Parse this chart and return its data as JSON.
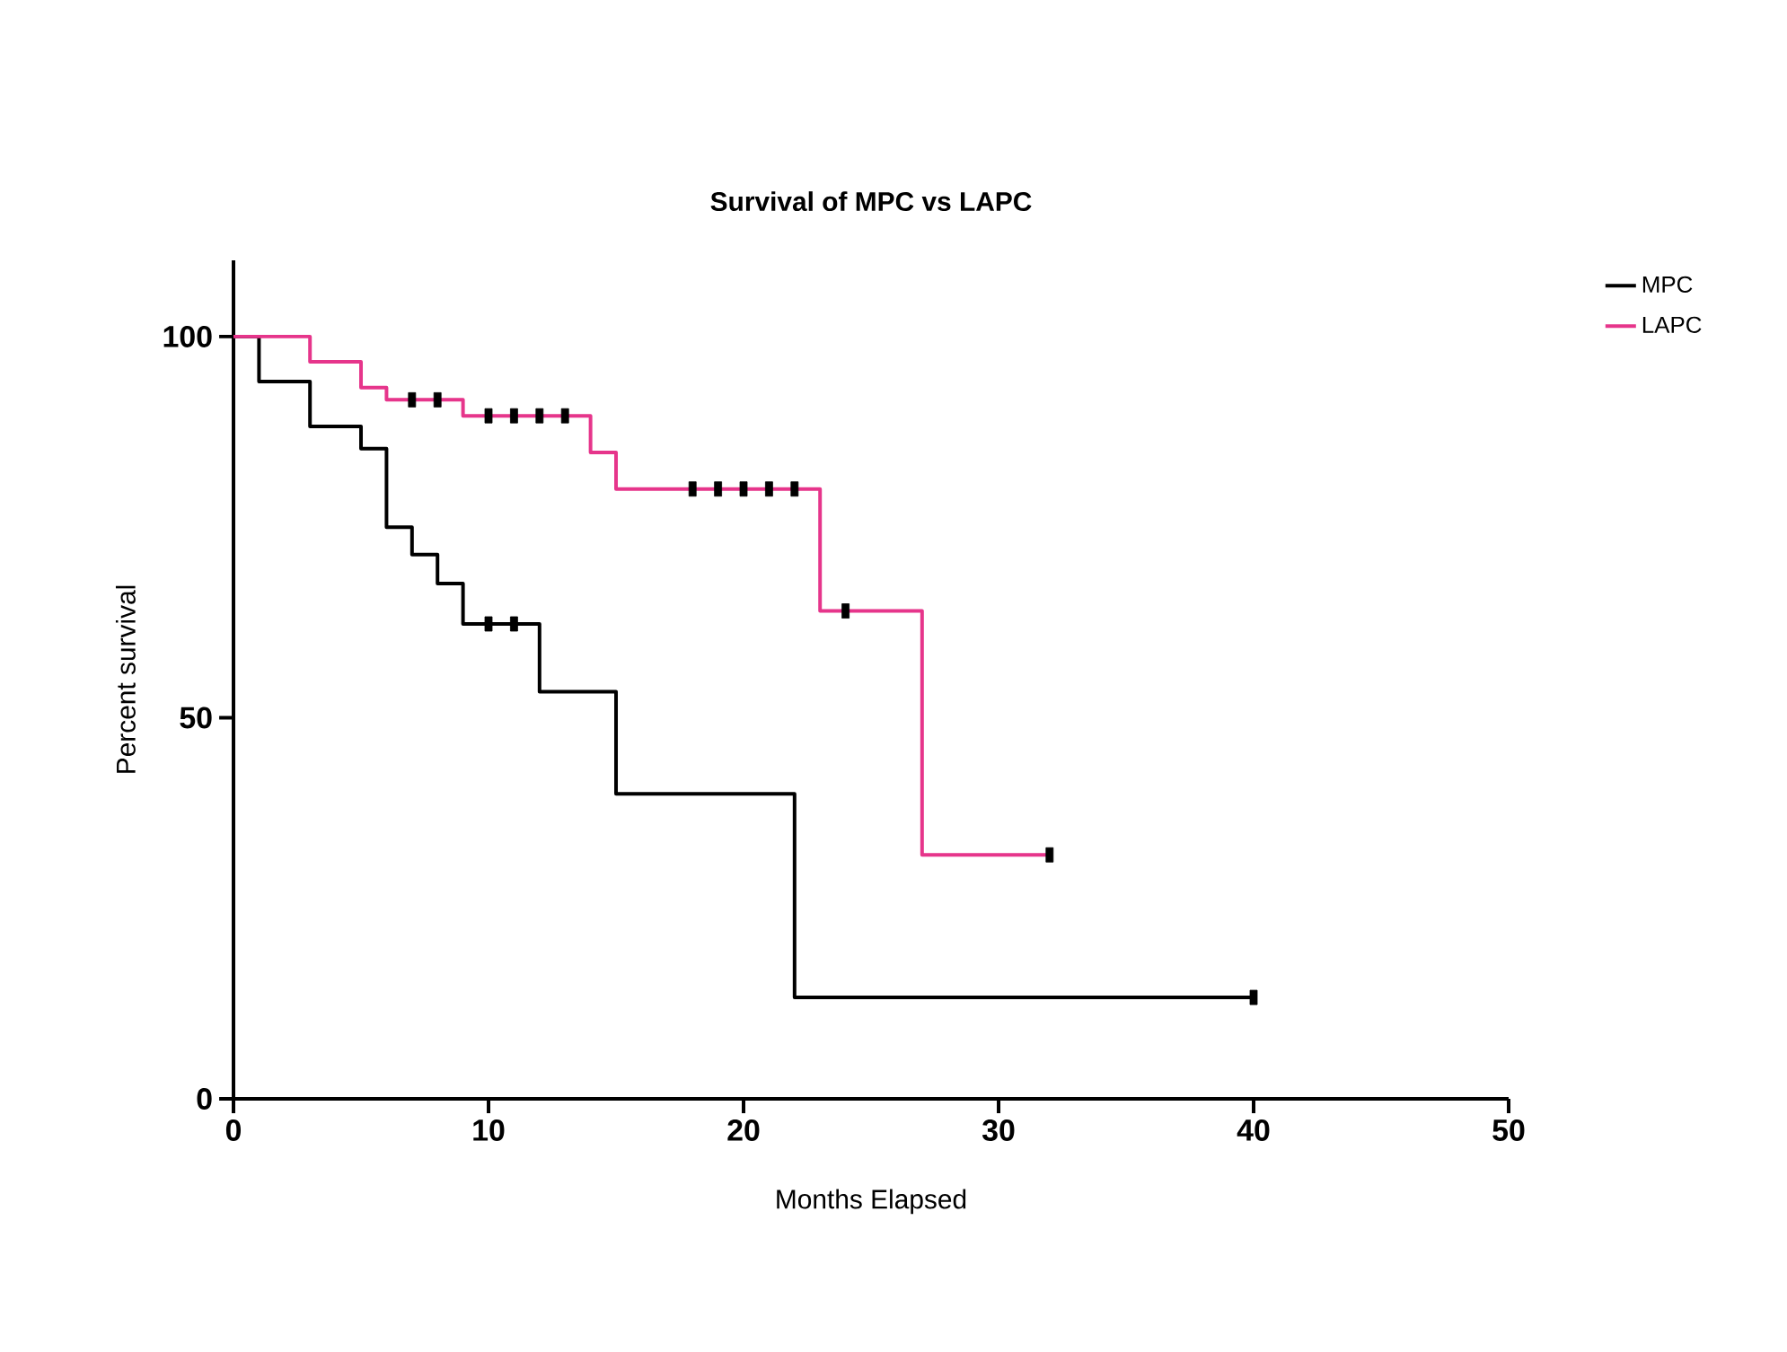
{
  "chart_data": {
    "type": "step",
    "title": "Survival of MPC vs LAPC",
    "xlabel": "Months Elapsed",
    "ylabel": "Percent survival",
    "xlim": [
      0,
      50
    ],
    "xticks": [
      0,
      10,
      20,
      30,
      40,
      50
    ],
    "ylim": [
      0,
      110
    ],
    "yticks": [
      0,
      50,
      100
    ],
    "grid": false,
    "legend": "top right",
    "series": [
      {
        "name": "MPC",
        "color": "#000000",
        "x": [
          0,
          1,
          3,
          5,
          6,
          7,
          8,
          9,
          12,
          15,
          22,
          40
        ],
        "values": [
          100,
          94.1,
          88.2,
          85.3,
          75,
          71.4,
          67.6,
          62.3,
          53.4,
          40,
          13.3,
          13.3
        ]
      },
      {
        "name": "LAPC",
        "color": "#e6358b",
        "x": [
          0,
          3,
          5,
          6,
          9,
          14,
          15,
          23,
          27,
          32
        ],
        "values": [
          100,
          96.7,
          93.3,
          91.7,
          89.6,
          84.8,
          80,
          64,
          32,
          32
        ]
      },
      {
        "type": "scatter",
        "color": "#000000",
        "x": [
          10,
          11,
          40
        ],
        "values": [
          62.3,
          62.3,
          13.3
        ]
      },
      {
        "type": "scatter",
        "color": "#000000",
        "x": [
          7,
          8,
          10,
          11,
          12,
          13,
          18,
          19,
          20,
          21,
          22,
          24,
          32
        ],
        "values": [
          91.7,
          91.7,
          89.6,
          89.6,
          89.6,
          89.6,
          80,
          80,
          80,
          80,
          80,
          64,
          32
        ]
      }
    ]
  }
}
